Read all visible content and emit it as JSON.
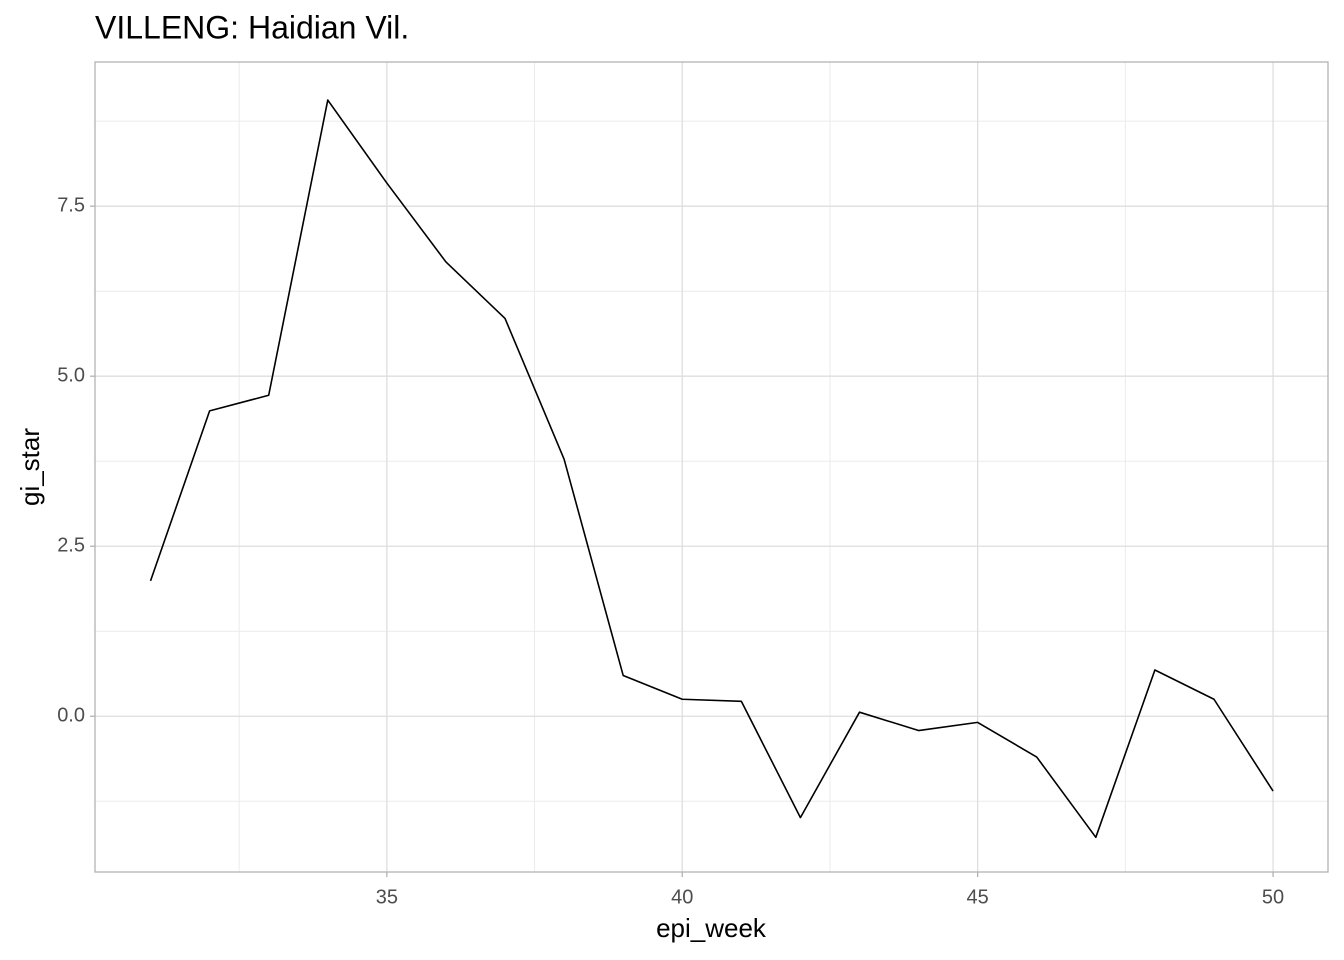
{
  "chart_data": {
    "type": "line",
    "title": "VILLENG: Haidian Vil.",
    "x_label": "epi_week",
    "y_label": "gi_star",
    "x": [
      31,
      32,
      33,
      34,
      35,
      36,
      37,
      38,
      39,
      40,
      41,
      42,
      43,
      44,
      45,
      46,
      47,
      48,
      49,
      50
    ],
    "series": [
      {
        "name": "gi_star",
        "color": "#000000",
        "values": [
          1.99,
          4.49,
          4.72,
          9.06,
          7.84,
          6.68,
          5.85,
          3.78,
          0.6,
          0.25,
          0.22,
          -1.49,
          0.06,
          -0.21,
          -0.09,
          -0.6,
          -1.78,
          0.68,
          0.25,
          -1.1
        ]
      }
    ],
    "xlim": [
      30.06,
      50.93
    ],
    "ylim": [
      -2.29,
      9.62
    ],
    "xticks": [
      35,
      40,
      45,
      50
    ],
    "yticks": [
      {
        "value": 0,
        "label": "0.0"
      },
      {
        "value": 2.5,
        "label": "2.5"
      },
      {
        "value": 5,
        "label": "5.0"
      },
      {
        "value": 7.5,
        "label": "7.5"
      }
    ],
    "grid": true
  }
}
